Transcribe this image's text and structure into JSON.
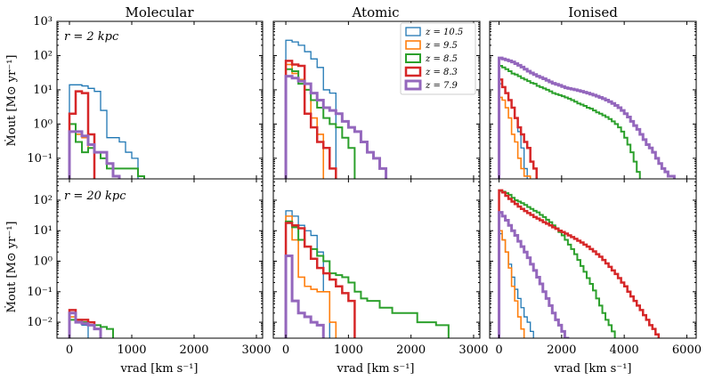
{
  "chart_data": {
    "type": "step",
    "description_series_order": [
      "z=10.5",
      "z=9.5",
      "z=8.5",
      "z=8.3",
      "z=7.9"
    ],
    "legend": {
      "location": "top-right of Atomic r=2 kpc panel",
      "entries": [
        {
          "label": "z = 10.5",
          "color": "#1f77b4"
        },
        {
          "label": "z = 9.5",
          "color": "#ff7f0e"
        },
        {
          "label": "z = 8.5",
          "color": "#2ca02c"
        },
        {
          "label": "z = 8.3",
          "color": "#d62728"
        },
        {
          "label": "z = 7.9",
          "color": "#9467bd"
        }
      ]
    },
    "column_titles": [
      "Molecular",
      "Atomic",
      "Ionised"
    ],
    "row_annotations": [
      "r = 2 kpc",
      "r = 20 kpc"
    ],
    "ylabel": "Ṁout [M⊙ yr⁻¹]",
    "xlabel": "vrad [km s⁻¹]",
    "yscale": "log",
    "rows": [
      {
        "ylim": [
          0.025,
          1000
        ],
        "yticks": [
          {
            "v": 0.1,
            "label": "10⁻¹"
          },
          {
            "v": 1,
            "label": "10⁰"
          },
          {
            "v": 10,
            "label": "10¹"
          },
          {
            "v": 100,
            "label": "10²"
          },
          {
            "v": 1000,
            "label": "10³"
          }
        ]
      },
      {
        "ylim": [
          0.003,
          500
        ],
        "yticks": [
          {
            "v": 0.01,
            "label": "10⁻²"
          },
          {
            "v": 0.1,
            "label": "10⁻¹"
          },
          {
            "v": 1,
            "label": "10⁰"
          },
          {
            "v": 10,
            "label": "10¹"
          },
          {
            "v": 100,
            "label": "10²"
          }
        ]
      }
    ],
    "columns": [
      {
        "xlim": [
          -200,
          3100
        ],
        "xticks": [
          0,
          1000,
          2000,
          3000
        ],
        "xticklabels": [
          "0",
          "1000",
          "2000",
          "3000"
        ]
      },
      {
        "xlim": [
          -200,
          3100
        ],
        "xticks": [
          0,
          1000,
          2000,
          3000
        ],
        "xticklabels": [
          "0",
          "1000",
          "2000",
          "3000"
        ]
      },
      {
        "xlim": [
          -300,
          6300
        ],
        "xticks": [
          0,
          2000,
          4000,
          6000
        ],
        "xticklabels": [
          "0",
          "2000",
          "4000",
          "6000"
        ]
      }
    ],
    "panels": [
      {
        "row": 0,
        "col": 0,
        "bin_width": 100,
        "series": [
          {
            "name": "z=10.5",
            "values": [
              14,
              14,
              13,
              11,
              9,
              2.5,
              0.4,
              0.4,
              0.3,
              0.15,
              0.1
            ]
          },
          {
            "name": "z=9.5",
            "values": [
              1.0,
              0.5,
              0.4,
              0.2
            ]
          },
          {
            "name": "z=8.5",
            "values": [
              1.0,
              0.3,
              0.15,
              0.2,
              0.15,
              0.1,
              0.05,
              0.05,
              0.05,
              0.05,
              0.05,
              0.03
            ]
          },
          {
            "name": "z=8.3",
            "values": [
              2.0,
              9.0,
              8.0,
              0.5
            ]
          },
          {
            "name": "z=7.9",
            "values": [
              0.6,
              0.6,
              0.45,
              0.25,
              0.15,
              0.15,
              0.07,
              0.03
            ]
          }
        ]
      },
      {
        "row": 0,
        "col": 1,
        "bin_width": 100,
        "series": [
          {
            "name": "z=10.5",
            "values": [
              280,
              250,
              200,
              130,
              80,
              45,
              10,
              8
            ]
          },
          {
            "name": "z=9.5",
            "values": [
              55,
              30,
              20,
              10,
              1.5,
              0.5
            ]
          },
          {
            "name": "z=8.5",
            "values": [
              40,
              35,
              15,
              10,
              5,
              3,
              1.5,
              1.0,
              0.8,
              0.4,
              0.2
            ]
          },
          {
            "name": "z=8.3",
            "values": [
              70,
              55,
              50,
              2.0,
              0.8,
              0.3,
              0.2,
              0.05
            ]
          },
          {
            "name": "z=7.9",
            "values": [
              25,
              22,
              18,
              15,
              8,
              5,
              3,
              2.5,
              2.0,
              1.2,
              0.8,
              0.6,
              0.3,
              0.15,
              0.1,
              0.05
            ]
          }
        ]
      },
      {
        "row": 0,
        "col": 2,
        "bin_width": 100,
        "series": [
          {
            "name": "z=10.5",
            "values": [
              15,
              12,
              8,
              5,
              3,
              1.5,
              0.6,
              0.2,
              0.05
            ]
          },
          {
            "name": "z=9.5",
            "values": [
              6,
              5,
              3,
              1.5,
              0.5,
              0.3,
              0.1,
              0.05,
              0.03,
              0.03
            ]
          },
          {
            "name": "z=8.5",
            "values": [
              50,
              45,
              40,
              35,
              30,
              28,
              25,
              22,
              20,
              18,
              16,
              15,
              13,
              12,
              11,
              10,
              9,
              8,
              7.5,
              7,
              6.5,
              6,
              5.5,
              5,
              4.5,
              4,
              3.7,
              3.4,
              3,
              2.8,
              2.5,
              2.2,
              2,
              1.8,
              1.6,
              1.4,
              1.2,
              1.0,
              0.8,
              0.6,
              0.4,
              0.25,
              0.15,
              0.08,
              0.04
            ]
          },
          {
            "name": "z=8.3",
            "values": [
              20,
              12,
              8,
              5,
              3,
              1.5,
              0.8,
              0.5,
              0.3,
              0.2,
              0.08,
              0.05
            ]
          },
          {
            "name": "z=7.9",
            "values": [
              85,
              80,
              75,
              70,
              65,
              58,
              52,
              46,
              40,
              35,
              31,
              28,
              25,
              23,
              21,
              19,
              17,
              15.5,
              14.5,
              13.5,
              12.5,
              11.5,
              11,
              10.5,
              10,
              9.5,
              9,
              8.5,
              8,
              7.5,
              7,
              6.5,
              6,
              5.5,
              5,
              4.5,
              4,
              3.5,
              3,
              2.5,
              2,
              1.6,
              1.2,
              0.9,
              0.7,
              0.5,
              0.35,
              0.25,
              0.2,
              0.15,
              0.1,
              0.07,
              0.05,
              0.04,
              0.03,
              0.03
            ]
          }
        ]
      },
      {
        "row": 1,
        "col": 0,
        "bin_width": 100,
        "series": [
          {
            "name": "z=10.5",
            "values": [
              0.012,
              0.01,
              0.008
            ]
          },
          {
            "name": "z=9.5",
            "values": [
              0.015,
              0.012,
              0.01,
              0.008,
              0.006
            ]
          },
          {
            "name": "z=8.5",
            "values": [
              0.012,
              0.012,
              0.01,
              0.008,
              0.008,
              0.007,
              0.006
            ]
          },
          {
            "name": "z=8.3",
            "values": [
              0.025,
              0.012,
              0.012,
              0.01,
              0.006
            ]
          },
          {
            "name": "z=7.9",
            "values": [
              0.02,
              0.01,
              0.009,
              0.008,
              0.006
            ]
          }
        ]
      },
      {
        "row": 1,
        "col": 1,
        "bin_width": 100,
        "series": [
          {
            "name": "z=10.5",
            "values": [
              45,
              30,
              15,
              10,
              7,
              2.0,
              0.1
            ]
          },
          {
            "name": "z=9.5",
            "values": [
              30,
              5,
              0.3,
              0.15,
              0.12,
              0.1,
              0.1,
              0.01
            ]
          },
          {
            "name": "z=8.5",
            "values": [
              20,
              13,
              5,
              3.0,
              2.5,
              1.5,
              1.0,
              0.4,
              0.35,
              0.3,
              0.2,
              0.1,
              0.06,
              0.05,
              0.05,
              0.03,
              0.03,
              0.02,
              0.02,
              0.02,
              0.02,
              0.01,
              0.01,
              0.01,
              0.008,
              0.008
            ]
          },
          {
            "name": "z=8.3",
            "values": [
              18,
              15,
              12,
              3.0,
              1.2,
              0.6,
              0.4,
              0.25,
              0.15,
              0.09,
              0.05
            ]
          },
          {
            "name": "z=7.9",
            "values": [
              1.5,
              0.05,
              0.02,
              0.015,
              0.01,
              0.008
            ]
          }
        ]
      },
      {
        "row": 1,
        "col": 2,
        "bin_width": 100,
        "series": [
          {
            "name": "z=10.5",
            "values": [
              8,
              5,
              2,
              0.8,
              0.3,
              0.12,
              0.06,
              0.03,
              0.015,
              0.01,
              0.005
            ]
          },
          {
            "name": "z=9.5",
            "values": [
              10,
              5,
              2,
              0.6,
              0.15,
              0.05,
              0.015,
              0.006
            ]
          },
          {
            "name": "z=8.5",
            "values": [
              200,
              190,
              170,
              150,
              120,
              100,
              90,
              80,
              70,
              60,
              52,
              45,
              40,
              33,
              28,
              23,
              19,
              15,
              12,
              9,
              7,
              5,
              3.5,
              2.5,
              1.7,
              1.1,
              0.7,
              0.45,
              0.28,
              0.18,
              0.11,
              0.06,
              0.035,
              0.02,
              0.012,
              0.008,
              0.005
            ]
          },
          {
            "name": "z=8.3",
            "values": [
              210,
              180,
              140,
              110,
              90,
              75,
              62,
              52,
              44,
              38,
              33,
              28,
              25,
              22,
              19,
              17,
              15,
              13,
              11.5,
              10,
              9,
              8,
              7,
              6.2,
              5.4,
              4.7,
              4.1,
              3.5,
              3.0,
              2.5,
              2.1,
              1.7,
              1.4,
              1.1,
              0.85,
              0.65,
              0.5,
              0.38,
              0.28,
              0.2,
              0.15,
              0.1,
              0.07,
              0.05,
              0.035,
              0.025,
              0.017,
              0.012,
              0.008,
              0.006,
              0.004
            ]
          },
          {
            "name": "z=7.9",
            "values": [
              40,
              30,
              22,
              15,
              10,
              7,
              4.5,
              3,
              2,
              1.3,
              0.8,
              0.5,
              0.3,
              0.18,
              0.1,
              0.06,
              0.035,
              0.02,
              0.012,
              0.008,
              0.005,
              0.003
            ]
          }
        ]
      }
    ]
  }
}
